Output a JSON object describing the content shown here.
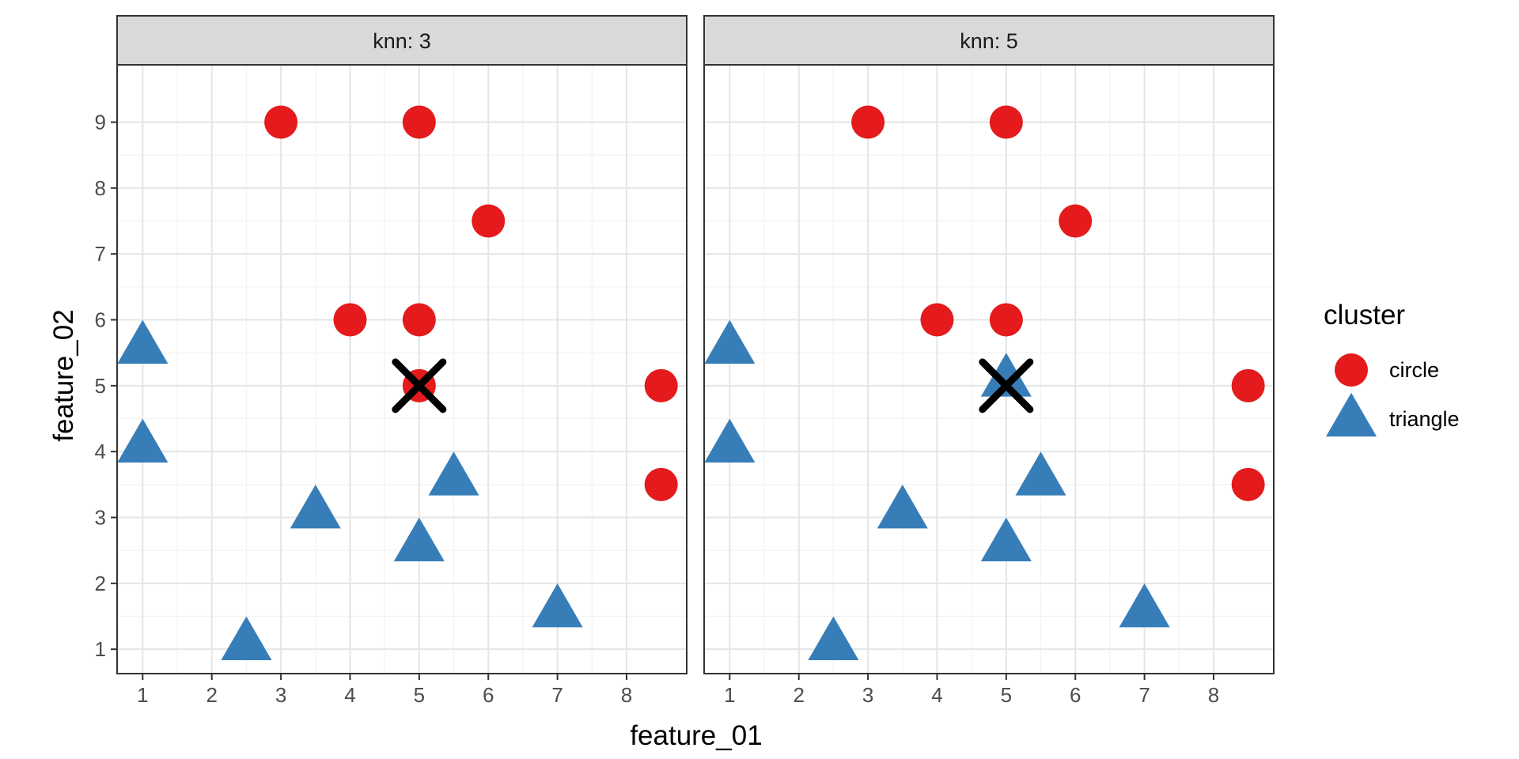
{
  "chart_data": {
    "type": "scatter",
    "xlabel": "feature_01",
    "ylabel": "feature_02",
    "xlim": [
      0.63,
      8.87
    ],
    "ylim": [
      0.63,
      9.87
    ],
    "x_ticks": [
      1,
      2,
      3,
      4,
      5,
      6,
      7,
      8
    ],
    "y_ticks": [
      1,
      2,
      3,
      4,
      5,
      6,
      7,
      8,
      9
    ],
    "grid": true,
    "legend": {
      "title": "cluster",
      "position": "right",
      "entries": [
        {
          "label": "circle",
          "color": "#E41A1C",
          "shape": "circle"
        },
        {
          "label": "triangle",
          "color": "#377EB8",
          "shape": "triangle"
        }
      ]
    },
    "query_point": {
      "x": 5,
      "y": 5,
      "shape": "x",
      "color": "#000000"
    },
    "panels": [
      {
        "strip": "knn: 3",
        "query_class": "circle",
        "circle": [
          [
            3,
            9
          ],
          [
            5,
            9
          ],
          [
            6,
            7.5
          ],
          [
            4,
            6
          ],
          [
            5,
            6
          ],
          [
            5,
            5
          ],
          [
            8.5,
            5
          ],
          [
            8.5,
            3.5
          ]
        ],
        "triangle": [
          [
            1,
            5.6
          ],
          [
            1,
            4.1
          ],
          [
            5.5,
            3.6
          ],
          [
            3.5,
            3.1
          ],
          [
            5,
            2.6
          ],
          [
            7,
            1.6
          ],
          [
            2.5,
            1.1
          ]
        ]
      },
      {
        "strip": "knn: 5",
        "query_class": "triangle",
        "circle": [
          [
            3,
            9
          ],
          [
            5,
            9
          ],
          [
            6,
            7.5
          ],
          [
            4,
            6
          ],
          [
            5,
            6
          ],
          [
            8.5,
            5
          ],
          [
            8.5,
            3.5
          ]
        ],
        "triangle": [
          [
            1,
            5.6
          ],
          [
            5,
            5.1
          ],
          [
            1,
            4.1
          ],
          [
            5.5,
            3.6
          ],
          [
            3.5,
            3.1
          ],
          [
            5,
            2.6
          ],
          [
            7,
            1.6
          ],
          [
            2.5,
            1.1
          ]
        ]
      }
    ]
  }
}
